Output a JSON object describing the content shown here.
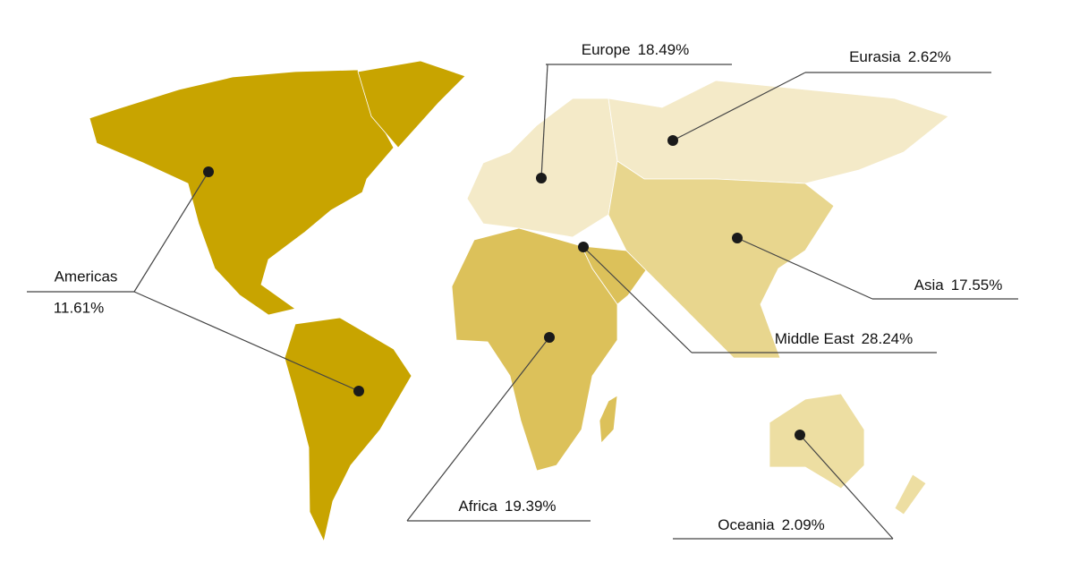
{
  "regions": [
    {
      "name": "Americas",
      "share": "11.61%"
    },
    {
      "name": "Europe",
      "share": "18.49%"
    },
    {
      "name": "Eurasia",
      "share": "2.62%"
    },
    {
      "name": "Asia",
      "share": "17.55%"
    },
    {
      "name": "Middle East",
      "share": "28.24%"
    },
    {
      "name": "Africa",
      "share": "19.39%"
    },
    {
      "name": "Oceania",
      "share": "2.09%"
    }
  ]
}
